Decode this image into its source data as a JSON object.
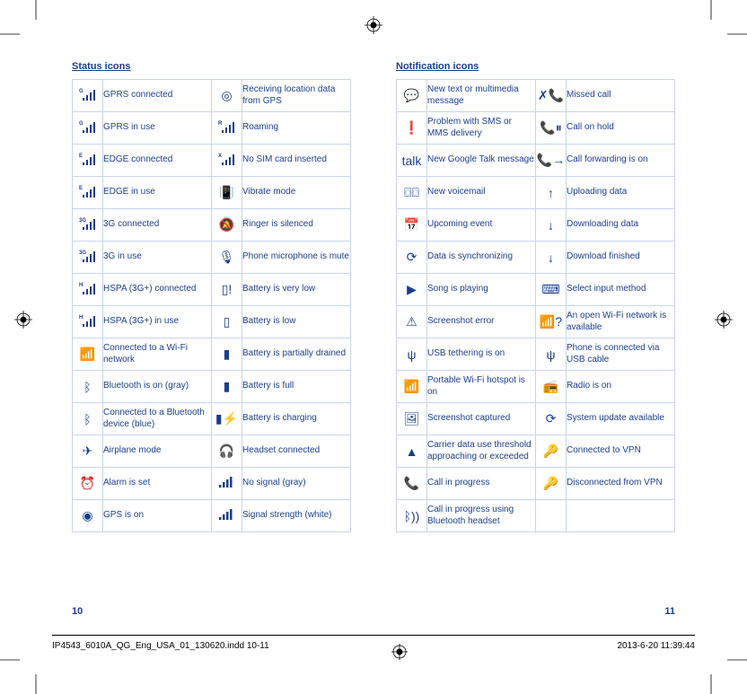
{
  "colors": {
    "ink": "#1a3e8c",
    "rule": "#c8d4ea"
  },
  "left": {
    "title": "Status icons",
    "rows": [
      {
        "icon1": "signal-g-icon",
        "sig1": "G",
        "label1": "GPRS connected",
        "icon2": "target-icon",
        "glyph2": "◎",
        "label2": "Receiving location data from GPS"
      },
      {
        "icon1": "signal-g-use-icon",
        "sig1": "G",
        "label1": "GPRS in use",
        "icon2": "signal-r-icon",
        "sig2": "R",
        "label2": "Roaming"
      },
      {
        "icon1": "signal-e-icon",
        "sig1": "E",
        "label1": "EDGE connected",
        "icon2": "signal-x-icon",
        "sig2": "X",
        "label2": "No SIM card inserted"
      },
      {
        "icon1": "signal-e-use-icon",
        "sig1": "E",
        "label1": "EDGE in use",
        "icon2": "vibrate-icon",
        "glyph2": "📳",
        "label2": "Vibrate mode"
      },
      {
        "icon1": "signal-3g-icon",
        "sig1": "3G",
        "label1": "3G connected",
        "icon2": "bell-slash-icon",
        "glyph2": "🔕",
        "label2": "Ringer is silenced"
      },
      {
        "icon1": "signal-3g-use-icon",
        "sig1": "3G",
        "label1": "3G in use",
        "icon2": "mic-mute-icon",
        "glyph2": "🎙",
        "label2": "Phone microphone is mute"
      },
      {
        "icon1": "signal-h-icon",
        "sig1": "H",
        "label1": "HSPA (3G+) connected",
        "icon2": "battery-vlow-icon",
        "glyph2": "▯!",
        "label2": "Battery is very low"
      },
      {
        "icon1": "signal-h-use-icon",
        "sig1": "H",
        "label1": "HSPA (3G+) in use",
        "icon2": "battery-low-icon",
        "glyph2": "▯",
        "label2": "Battery is low"
      },
      {
        "icon1": "wifi-icon",
        "glyph1": "📶",
        "label1": "Connected to a Wi-Fi network",
        "icon2": "battery-partial-icon",
        "glyph2": "▮",
        "label2": "Battery is partially drained"
      },
      {
        "icon1": "bluetooth-gray-icon",
        "glyph1": "ᛒ",
        "label1": "Bluetooth is on (gray)",
        "icon2": "battery-full-icon",
        "glyph2": "▮",
        "label2": "Battery is full"
      },
      {
        "icon1": "bluetooth-blue-icon",
        "glyph1": "ᛒ",
        "label1": "Connected to a Bluetooth device (blue)",
        "icon2": "battery-charge-icon",
        "glyph2": "▮⚡",
        "label2": "Battery is charging"
      },
      {
        "icon1": "airplane-icon",
        "glyph1": "✈",
        "label1": "Airplane mode",
        "icon2": "headset-icon",
        "glyph2": "🎧",
        "label2": "Headset connected"
      },
      {
        "icon1": "alarm-icon",
        "glyph1": "⏰",
        "label1": "Alarm is set",
        "icon2": "signal-gray-icon",
        "glyph2": "▮",
        "label2": "No signal (gray)"
      },
      {
        "icon1": "gps-on-icon",
        "glyph1": "◉",
        "label1": "GPS is on",
        "icon2": "signal-white-icon",
        "glyph2": "▮",
        "label2": "Signal strength (white)"
      }
    ]
  },
  "right": {
    "title": "Notification icons",
    "rows": [
      {
        "icon1": "sms-icon",
        "glyph1": "💬",
        "label1": "New text or multimedia message",
        "icon2": "missed-call-icon",
        "glyph2": "✗📞",
        "label2": "Missed call"
      },
      {
        "icon1": "sms-error-icon",
        "glyph1": "❗",
        "label1": "Problem with SMS or MMS delivery",
        "icon2": "call-hold-icon",
        "glyph2": "📞⏸",
        "label2": "Call on hold"
      },
      {
        "icon1": "gtalk-icon",
        "glyph1": "talk",
        "label1": "New Google Talk message",
        "icon2": "call-fwd-icon",
        "glyph2": "📞→",
        "label2": "Call forwarding is on"
      },
      {
        "icon1": "voicemail-icon",
        "glyph1": "⌼⌼",
        "label1": "New voicemail",
        "icon2": "upload-icon",
        "glyph2": "↑",
        "label2": "Uploading data"
      },
      {
        "icon1": "calendar-icon",
        "glyph1": "📅",
        "label1": "Upcoming event",
        "icon2": "download-icon",
        "glyph2": "↓",
        "label2": "Downloading data"
      },
      {
        "icon1": "sync-icon",
        "glyph1": "⟳",
        "label1": "Data is synchronizing",
        "icon2": "download-done-icon",
        "glyph2": "↓",
        "label2": "Download finished"
      },
      {
        "icon1": "play-icon",
        "glyph1": "▶",
        "label1": "Song is playing",
        "icon2": "keyboard-icon",
        "glyph2": "⌨",
        "label2": "Select input method"
      },
      {
        "icon1": "screenshot-err-icon",
        "glyph1": "⚠",
        "label1": "Screenshot error",
        "icon2": "wifi-open-icon",
        "glyph2": "📶?",
        "label2": "An open Wi-Fi network is available"
      },
      {
        "icon1": "usb-tether-icon",
        "glyph1": "ψ",
        "label1": "USB tethering is on",
        "icon2": "usb-icon",
        "glyph2": "ψ",
        "label2": "Phone is connected via USB cable"
      },
      {
        "icon1": "hotspot-icon",
        "glyph1": "📶",
        "label1": "Portable Wi-Fi hotspot is on",
        "icon2": "radio-icon",
        "glyph2": "📻",
        "label2": "Radio is on"
      },
      {
        "icon1": "screenshot-icon",
        "glyph1": "🖼",
        "label1": "Screenshot captured",
        "icon2": "update-icon",
        "glyph2": "⟳",
        "label2": "System update available"
      },
      {
        "icon1": "data-warn-icon",
        "glyph1": "▲",
        "label1": "Carrier data use threshold approaching or exceeded",
        "icon2": "vpn-on-icon",
        "glyph2": "🔑",
        "label2": "Connected to VPN"
      },
      {
        "icon1": "call-icon",
        "glyph1": "📞",
        "label1": "Call in progress",
        "icon2": "vpn-off-icon",
        "glyph2": "🔑",
        "label2": "Disconnected from VPN"
      },
      {
        "icon1": "bt-call-icon",
        "glyph1": "ᛒ))",
        "label1": "Call in progress using Bluetooth headset",
        "icon2": "",
        "glyph2": "",
        "label2": ""
      }
    ]
  },
  "page_num_left": "10",
  "page_num_right": "11",
  "footer": {
    "file": "IP4543_6010A_QG_Eng_USA_01_130620.indd   10-11",
    "datetime": "2013-6-20   11:39:44"
  }
}
